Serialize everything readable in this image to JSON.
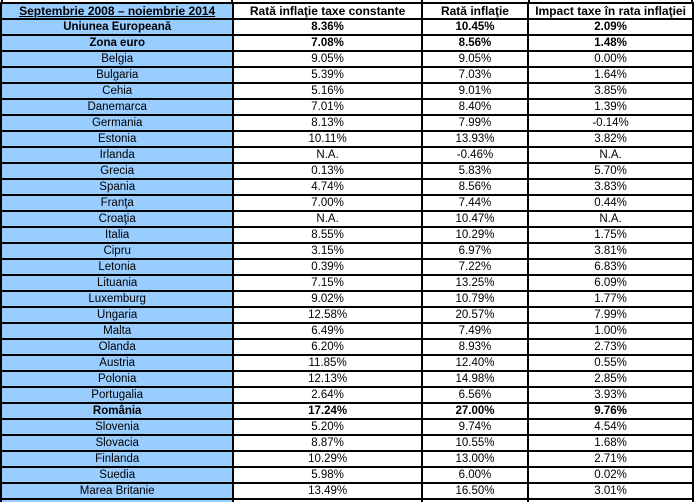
{
  "table": {
    "header": {
      "period": "Septembrie 2008 – noiembrie 2014",
      "col_constant_tax": "Rată inflaţie taxe constante",
      "col_inflation": "Rată inflaţie",
      "col_tax_impact": "Impact taxe în rata inflaţiei"
    },
    "rows": [
      {
        "name": "Uniunea Europeană",
        "constant_tax": "8.36%",
        "inflation": "10.45%",
        "tax_impact": "2.09%",
        "style": "bold"
      },
      {
        "name": "Zona euro",
        "constant_tax": "7.08%",
        "inflation": "8.56%",
        "tax_impact": "1.48%",
        "style": "bold"
      },
      {
        "name": "Belgia",
        "constant_tax": "9.05%",
        "inflation": "9.05%",
        "tax_impact": "0.00%",
        "style": ""
      },
      {
        "name": "Bulgaria",
        "constant_tax": "5.39%",
        "inflation": "7.03%",
        "tax_impact": "1.64%",
        "style": ""
      },
      {
        "name": "Cehia",
        "constant_tax": "5.16%",
        "inflation": "9.01%",
        "tax_impact": "3.85%",
        "style": ""
      },
      {
        "name": "Danemarca",
        "constant_tax": "7.01%",
        "inflation": "8.40%",
        "tax_impact": "1.39%",
        "style": ""
      },
      {
        "name": "Germania",
        "constant_tax": "8.13%",
        "inflation": "7.99%",
        "tax_impact": "-0.14%",
        "style": ""
      },
      {
        "name": "Estonia",
        "constant_tax": "10.11%",
        "inflation": "13.93%",
        "tax_impact": "3.82%",
        "style": ""
      },
      {
        "name": "Irlanda",
        "constant_tax": "N.A.",
        "inflation": "-0.46%",
        "tax_impact": "N.A.",
        "style": ""
      },
      {
        "name": "Grecia",
        "constant_tax": "0.13%",
        "inflation": "5.83%",
        "tax_impact": "5.70%",
        "style": ""
      },
      {
        "name": "Spania",
        "constant_tax": "4.74%",
        "inflation": "8.56%",
        "tax_impact": "3.83%",
        "style": ""
      },
      {
        "name": "Franţa",
        "constant_tax": "7.00%",
        "inflation": "7.44%",
        "tax_impact": "0.44%",
        "style": ""
      },
      {
        "name": "Croaţia",
        "constant_tax": "N.A.",
        "inflation": "10.47%",
        "tax_impact": "N.A.",
        "style": ""
      },
      {
        "name": "Italia",
        "constant_tax": "8.55%",
        "inflation": "10.29%",
        "tax_impact": "1.75%",
        "style": ""
      },
      {
        "name": "Cipru",
        "constant_tax": "3.15%",
        "inflation": "6.97%",
        "tax_impact": "3.81%",
        "style": ""
      },
      {
        "name": "Letonia",
        "constant_tax": "0.39%",
        "inflation": "7.22%",
        "tax_impact": "6.83%",
        "style": ""
      },
      {
        "name": "Lituania",
        "constant_tax": "7.15%",
        "inflation": "13.25%",
        "tax_impact": "6.09%",
        "style": ""
      },
      {
        "name": "Luxemburg",
        "constant_tax": "9.02%",
        "inflation": "10.79%",
        "tax_impact": "1.77%",
        "style": ""
      },
      {
        "name": "Ungaria",
        "constant_tax": "12.58%",
        "inflation": "20.57%",
        "tax_impact": "7.99%",
        "style": ""
      },
      {
        "name": "Malta",
        "constant_tax": "6.49%",
        "inflation": "7.49%",
        "tax_impact": "1.00%",
        "style": ""
      },
      {
        "name": "Olanda",
        "constant_tax": "6.20%",
        "inflation": "8.93%",
        "tax_impact": "2.73%",
        "style": ""
      },
      {
        "name": "Austria",
        "constant_tax": "11.85%",
        "inflation": "12.40%",
        "tax_impact": "0.55%",
        "style": ""
      },
      {
        "name": "Polonia",
        "constant_tax": "12.13%",
        "inflation": "14.98%",
        "tax_impact": "2.85%",
        "style": ""
      },
      {
        "name": "Portugalia",
        "constant_tax": "2.64%",
        "inflation": "6.56%",
        "tax_impact": "3.93%",
        "style": ""
      },
      {
        "name": "România",
        "constant_tax": "17.24%",
        "inflation": "27.00%",
        "tax_impact": "9.76%",
        "style": "highlight"
      },
      {
        "name": "Slovenia",
        "constant_tax": "5.20%",
        "inflation": "9.74%",
        "tax_impact": "4.54%",
        "style": ""
      },
      {
        "name": "Slovacia",
        "constant_tax": "8.87%",
        "inflation": "10.55%",
        "tax_impact": "1.68%",
        "style": ""
      },
      {
        "name": "Finlanda",
        "constant_tax": "10.29%",
        "inflation": "13.00%",
        "tax_impact": "2.71%",
        "style": ""
      },
      {
        "name": "Suedia",
        "constant_tax": "5.98%",
        "inflation": "6.00%",
        "tax_impact": "0.02%",
        "style": ""
      },
      {
        "name": "Marea Britanie",
        "constant_tax": "13.49%",
        "inflation": "16.50%",
        "tax_impact": "3.01%",
        "style": ""
      }
    ],
    "colors": {
      "row_label_bg": "#99CCFF",
      "highlight": "#FF0000",
      "border": "#000000"
    }
  }
}
